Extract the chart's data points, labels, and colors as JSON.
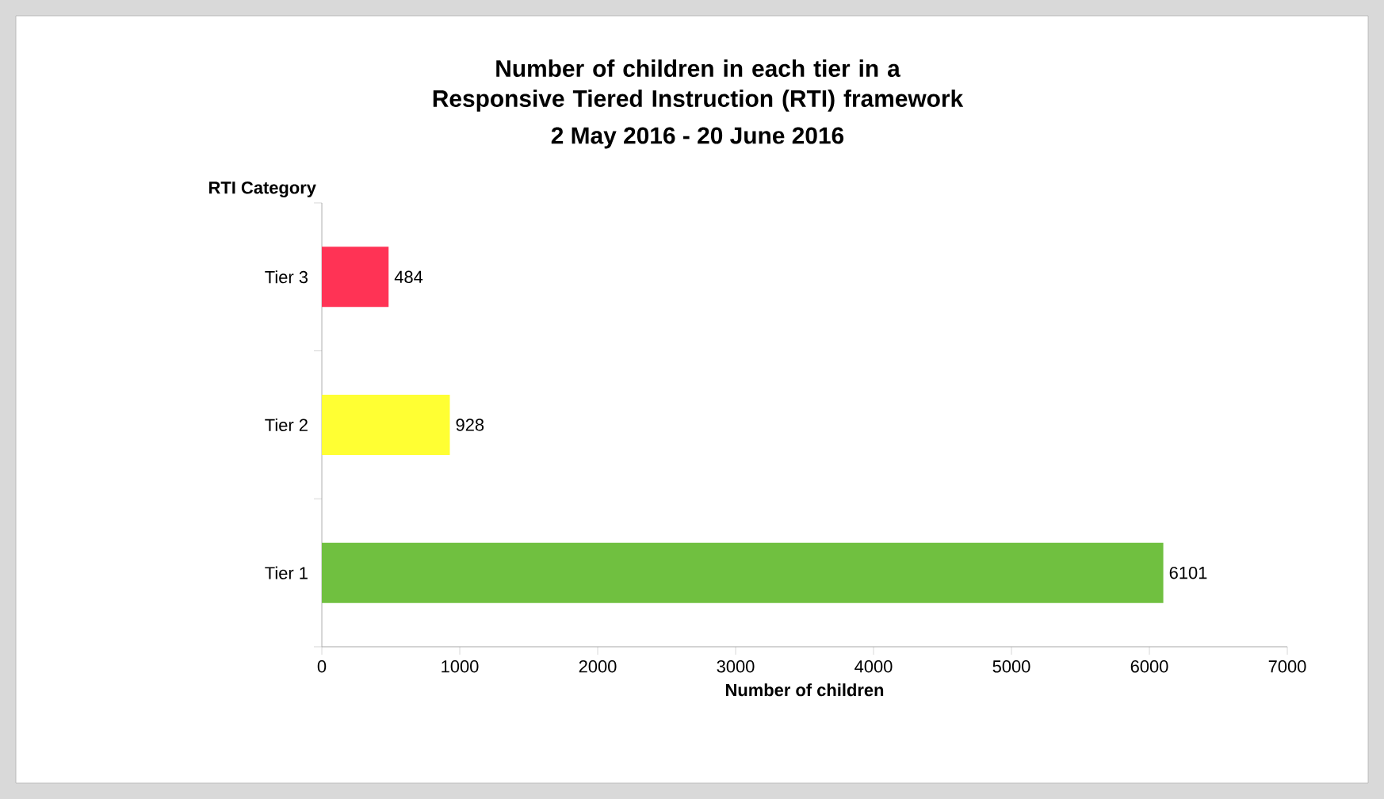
{
  "chart_data": {
    "type": "bar",
    "orientation": "horizontal",
    "title": "Number of children in each tier in a Responsive Tiered Instruction (RTI) framework",
    "subtitle": "2 May 2016 - 20 June 2016",
    "xlabel": "Number of children",
    "ylabel": "RTI Category",
    "categories": [
      "Tier 3",
      "Tier 2",
      "Tier 1"
    ],
    "values": [
      484,
      928,
      6101
    ],
    "colors": [
      "#ff3355",
      "#ffff33",
      "#70c040"
    ],
    "xlim": [
      0,
      7000
    ],
    "xticks": [
      0,
      1000,
      2000,
      3000,
      4000,
      5000,
      6000,
      7000
    ],
    "data_labels": true,
    "grid": false
  }
}
